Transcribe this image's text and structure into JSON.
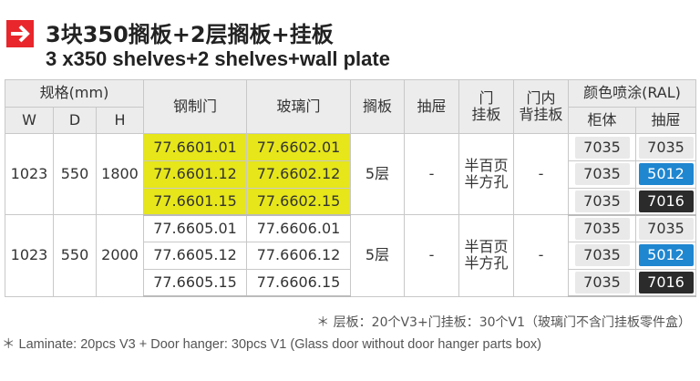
{
  "title_cn": "3块350搁板+2层搁板+挂板",
  "title_en": "3 x350 shelves+2 shelves+wall plate",
  "header": {
    "spec": "规格(mm)",
    "w": "W",
    "d": "D",
    "h": "H",
    "steel": "钢制门",
    "glass": "玻璃门",
    "shelf": "搁板",
    "drawer": "抽屉",
    "door_plate": "门\n挂板",
    "back_plate": "门内\n背挂板",
    "color": "颜色喷涂(RAL)",
    "cabinet": "柜体",
    "drawer_color": "抽屉"
  },
  "groups": [
    {
      "w": "1023",
      "d": "550",
      "h": "1800",
      "shelf": "5层",
      "drawer": "-",
      "door_plate": "半百页\n半方孔",
      "back_plate": "-",
      "highlight": true,
      "rows": [
        {
          "steel": "77.6601.01",
          "glass": "77.6602.01",
          "cab": "7035",
          "drw": "7035"
        },
        {
          "steel": "77.6601.12",
          "glass": "77.6602.12",
          "cab": "7035",
          "drw": "5012"
        },
        {
          "steel": "77.6601.15",
          "glass": "77.6602.15",
          "cab": "7035",
          "drw": "7016"
        }
      ]
    },
    {
      "w": "1023",
      "d": "550",
      "h": "2000",
      "shelf": "5层",
      "drawer": "-",
      "door_plate": "半百页\n半方孔",
      "back_plate": "-",
      "highlight": false,
      "rows": [
        {
          "steel": "77.6605.01",
          "glass": "77.6606.01",
          "cab": "7035",
          "drw": "7035"
        },
        {
          "steel": "77.6605.12",
          "glass": "77.6606.12",
          "cab": "7035",
          "drw": "5012"
        },
        {
          "steel": "77.6605.15",
          "glass": "77.6606.15",
          "cab": "7035",
          "drw": "7016"
        }
      ]
    }
  ],
  "colors": {
    "7035": "#e9e9e9",
    "5012": "#1f86d0",
    "7016": "#2b2b2b",
    "highlight": "#e6e61a",
    "arrow": "#e8262b"
  },
  "note_cn": "＊ 层板：20个V3+门挂板：30个V1（玻璃门不含门挂板零件盒）",
  "note_en": "＊ Laminate: 20pcs V3 + Door hanger: 30pcs V1 (Glass door without door hanger parts box)",
  "icon": "arrow-right-icon"
}
